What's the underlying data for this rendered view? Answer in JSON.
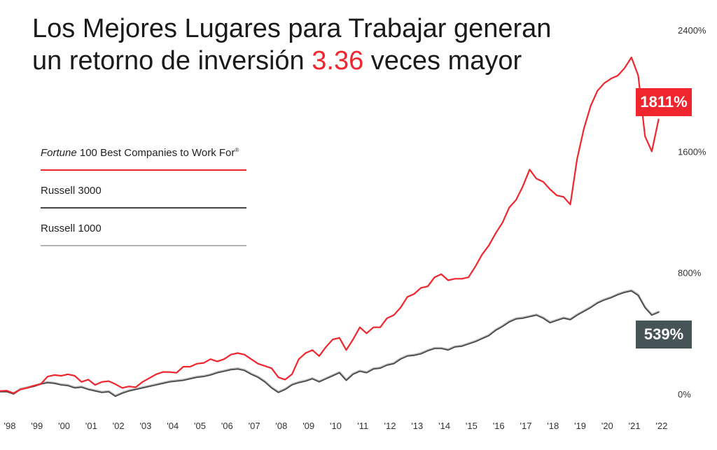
{
  "title": {
    "line1": "Los Mejores Lugares para Trabajar generan",
    "line2_prefix": "un retorno de inversión ",
    "line2_highlight": "3.36",
    "line2_suffix": " veces mayor"
  },
  "legend": {
    "items": [
      {
        "label_italic": "Fortune",
        "label_rest": " 100 Best Companies to Work For",
        "label_mark": "®",
        "color": "#f0262f"
      },
      {
        "label": "Russell 3000",
        "color": "#444444"
      },
      {
        "label": "Russell 1000",
        "color": "#b3b3b3"
      }
    ]
  },
  "badges": {
    "best": "1811%",
    "russell": "539%"
  },
  "colors": {
    "accent": "#f0262f",
    "r3000": "#444444",
    "r1000": "#b3b3b3",
    "badge_dark": "#465357"
  },
  "chart_data": {
    "type": "line",
    "title": "Los Mejores Lugares para Trabajar generan un retorno de inversión 3.36 veces mayor",
    "x_tick_labels": [
      "'98",
      "'99",
      "'00",
      "'01",
      "'02",
      "'03",
      "'04",
      "'05",
      "'06",
      "'07",
      "'08",
      "'09",
      "'10",
      "'11",
      "'12",
      "'13",
      "'14",
      "'15",
      "'16",
      "'17",
      "'18",
      "'19",
      "'20",
      "'21",
      "'22"
    ],
    "y_tick_labels": [
      "0%",
      "800%",
      "1600%",
      "2400%"
    ],
    "ylim": [
      0,
      2400
    ],
    "xlim": [
      1998,
      2022.75
    ],
    "y_axis_side": "right",
    "grid": false,
    "series": [
      {
        "name": "Fortune 100 Best Companies to Work For®",
        "color": "#f0262f",
        "points": [
          [
            1998.0,
            20
          ],
          [
            1998.25,
            22
          ],
          [
            1998.5,
            5
          ],
          [
            1998.75,
            30
          ],
          [
            1999.0,
            40
          ],
          [
            1999.25,
            55
          ],
          [
            1999.5,
            65
          ],
          [
            1999.75,
            115
          ],
          [
            2000.0,
            125
          ],
          [
            2000.25,
            120
          ],
          [
            2000.5,
            130
          ],
          [
            2000.75,
            120
          ],
          [
            2001.0,
            80
          ],
          [
            2001.25,
            95
          ],
          [
            2001.5,
            60
          ],
          [
            2001.75,
            80
          ],
          [
            2002.0,
            85
          ],
          [
            2002.25,
            65
          ],
          [
            2002.5,
            40
          ],
          [
            2002.75,
            50
          ],
          [
            2003.0,
            45
          ],
          [
            2003.25,
            80
          ],
          [
            2003.5,
            105
          ],
          [
            2003.75,
            130
          ],
          [
            2004.0,
            145
          ],
          [
            2004.25,
            145
          ],
          [
            2004.5,
            140
          ],
          [
            2004.75,
            180
          ],
          [
            2005.0,
            180
          ],
          [
            2005.25,
            200
          ],
          [
            2005.5,
            205
          ],
          [
            2005.75,
            230
          ],
          [
            2006.0,
            215
          ],
          [
            2006.25,
            230
          ],
          [
            2006.5,
            260
          ],
          [
            2006.75,
            270
          ],
          [
            2007.0,
            260
          ],
          [
            2007.25,
            230
          ],
          [
            2007.5,
            200
          ],
          [
            2007.75,
            185
          ],
          [
            2008.0,
            170
          ],
          [
            2008.25,
            110
          ],
          [
            2008.5,
            95
          ],
          [
            2008.75,
            130
          ],
          [
            2009.0,
            230
          ],
          [
            2009.25,
            270
          ],
          [
            2009.5,
            290
          ],
          [
            2009.75,
            250
          ],
          [
            2010.0,
            310
          ],
          [
            2010.25,
            360
          ],
          [
            2010.5,
            370
          ],
          [
            2010.75,
            290
          ],
          [
            2011.0,
            360
          ],
          [
            2011.25,
            440
          ],
          [
            2011.5,
            400
          ],
          [
            2011.75,
            440
          ],
          [
            2012.0,
            440
          ],
          [
            2012.25,
            500
          ],
          [
            2012.5,
            520
          ],
          [
            2012.75,
            570
          ],
          [
            2013.0,
            640
          ],
          [
            2013.25,
            660
          ],
          [
            2013.5,
            700
          ],
          [
            2013.75,
            710
          ],
          [
            2014.0,
            770
          ],
          [
            2014.25,
            790
          ],
          [
            2014.5,
            750
          ],
          [
            2014.75,
            760
          ],
          [
            2015.0,
            760
          ],
          [
            2015.25,
            770
          ],
          [
            2015.5,
            840
          ],
          [
            2015.75,
            920
          ],
          [
            2016.0,
            980
          ],
          [
            2016.25,
            1060
          ],
          [
            2016.5,
            1130
          ],
          [
            2016.75,
            1230
          ],
          [
            2017.0,
            1280
          ],
          [
            2017.25,
            1370
          ],
          [
            2017.5,
            1480
          ],
          [
            2017.75,
            1420
          ],
          [
            2018.0,
            1400
          ],
          [
            2018.25,
            1350
          ],
          [
            2018.5,
            1310
          ],
          [
            2018.75,
            1300
          ],
          [
            2019.0,
            1250
          ],
          [
            2019.25,
            1550
          ],
          [
            2019.5,
            1750
          ],
          [
            2019.75,
            1900
          ],
          [
            2020.0,
            2000
          ],
          [
            2020.25,
            2050
          ],
          [
            2020.5,
            2080
          ],
          [
            2020.75,
            2100
          ],
          [
            2021.0,
            2150
          ],
          [
            2021.25,
            2220
          ],
          [
            2021.5,
            2100
          ],
          [
            2021.75,
            1700
          ],
          [
            2022.0,
            1600
          ],
          [
            2022.25,
            1811
          ]
        ]
      },
      {
        "name": "Russell 3000",
        "color": "#444444",
        "points": [
          [
            1998.0,
            15
          ],
          [
            1998.25,
            15
          ],
          [
            1998.5,
            0
          ],
          [
            1998.75,
            30
          ],
          [
            1999.0,
            40
          ],
          [
            1999.25,
            50
          ],
          [
            1999.5,
            65
          ],
          [
            1999.75,
            75
          ],
          [
            2000.0,
            70
          ],
          [
            2000.25,
            60
          ],
          [
            2000.5,
            55
          ],
          [
            2000.75,
            40
          ],
          [
            2001.0,
            45
          ],
          [
            2001.25,
            30
          ],
          [
            2001.5,
            20
          ],
          [
            2001.75,
            10
          ],
          [
            2002.0,
            15
          ],
          [
            2002.25,
            -15
          ],
          [
            2002.5,
            5
          ],
          [
            2002.75,
            20
          ],
          [
            2003.0,
            30
          ],
          [
            2003.25,
            40
          ],
          [
            2003.5,
            50
          ],
          [
            2003.75,
            60
          ],
          [
            2004.0,
            70
          ],
          [
            2004.25,
            80
          ],
          [
            2004.5,
            85
          ],
          [
            2004.75,
            90
          ],
          [
            2005.0,
            100
          ],
          [
            2005.25,
            110
          ],
          [
            2005.5,
            115
          ],
          [
            2005.75,
            125
          ],
          [
            2006.0,
            140
          ],
          [
            2006.25,
            150
          ],
          [
            2006.5,
            160
          ],
          [
            2006.75,
            165
          ],
          [
            2007.0,
            155
          ],
          [
            2007.25,
            130
          ],
          [
            2007.5,
            110
          ],
          [
            2007.75,
            80
          ],
          [
            2008.0,
            40
          ],
          [
            2008.25,
            10
          ],
          [
            2008.5,
            30
          ],
          [
            2008.75,
            60
          ],
          [
            2009.0,
            75
          ],
          [
            2009.25,
            85
          ],
          [
            2009.5,
            100
          ],
          [
            2009.75,
            80
          ],
          [
            2010.0,
            100
          ],
          [
            2010.25,
            120
          ],
          [
            2010.5,
            140
          ],
          [
            2010.75,
            90
          ],
          [
            2011.0,
            130
          ],
          [
            2011.25,
            150
          ],
          [
            2011.5,
            140
          ],
          [
            2011.75,
            165
          ],
          [
            2012.0,
            170
          ],
          [
            2012.25,
            190
          ],
          [
            2012.5,
            200
          ],
          [
            2012.75,
            230
          ],
          [
            2013.0,
            250
          ],
          [
            2013.25,
            255
          ],
          [
            2013.5,
            265
          ],
          [
            2013.75,
            285
          ],
          [
            2014.0,
            300
          ],
          [
            2014.25,
            300
          ],
          [
            2014.5,
            290
          ],
          [
            2014.75,
            310
          ],
          [
            2015.0,
            315
          ],
          [
            2015.25,
            330
          ],
          [
            2015.5,
            345
          ],
          [
            2015.75,
            365
          ],
          [
            2016.0,
            385
          ],
          [
            2016.25,
            420
          ],
          [
            2016.5,
            445
          ],
          [
            2016.75,
            475
          ],
          [
            2017.0,
            495
          ],
          [
            2017.25,
            500
          ],
          [
            2017.5,
            510
          ],
          [
            2017.75,
            520
          ],
          [
            2018.0,
            500
          ],
          [
            2018.25,
            470
          ],
          [
            2018.5,
            485
          ],
          [
            2018.75,
            500
          ],
          [
            2019.0,
            490
          ],
          [
            2019.25,
            520
          ],
          [
            2019.5,
            545
          ],
          [
            2019.75,
            570
          ],
          [
            2020.0,
            600
          ],
          [
            2020.25,
            620
          ],
          [
            2020.5,
            635
          ],
          [
            2020.75,
            655
          ],
          [
            2021.0,
            670
          ],
          [
            2021.25,
            680
          ],
          [
            2021.5,
            650
          ],
          [
            2021.75,
            570
          ],
          [
            2022.0,
            520
          ],
          [
            2022.25,
            539
          ]
        ]
      },
      {
        "name": "Russell 1000",
        "color": "#b3b3b3",
        "points": [
          [
            1998.0,
            18
          ],
          [
            1998.25,
            18
          ],
          [
            1998.5,
            3
          ],
          [
            1998.75,
            33
          ],
          [
            1999.0,
            43
          ],
          [
            1999.25,
            53
          ],
          [
            1999.5,
            68
          ],
          [
            1999.75,
            78
          ],
          [
            2000.0,
            73
          ],
          [
            2000.25,
            63
          ],
          [
            2000.5,
            58
          ],
          [
            2000.75,
            43
          ],
          [
            2001.0,
            48
          ],
          [
            2001.25,
            33
          ],
          [
            2001.5,
            23
          ],
          [
            2001.75,
            13
          ],
          [
            2002.0,
            18
          ],
          [
            2002.25,
            -12
          ],
          [
            2002.5,
            8
          ],
          [
            2002.75,
            23
          ],
          [
            2003.0,
            33
          ],
          [
            2003.25,
            43
          ],
          [
            2003.5,
            53
          ],
          [
            2003.75,
            63
          ],
          [
            2004.0,
            73
          ],
          [
            2004.25,
            83
          ],
          [
            2004.5,
            88
          ],
          [
            2004.75,
            93
          ],
          [
            2005.0,
            103
          ],
          [
            2005.25,
            113
          ],
          [
            2005.5,
            118
          ],
          [
            2005.75,
            128
          ],
          [
            2006.0,
            143
          ],
          [
            2006.25,
            153
          ],
          [
            2006.5,
            163
          ],
          [
            2006.75,
            168
          ],
          [
            2007.0,
            158
          ],
          [
            2007.25,
            133
          ],
          [
            2007.5,
            113
          ],
          [
            2007.75,
            83
          ],
          [
            2008.0,
            43
          ],
          [
            2008.25,
            13
          ],
          [
            2008.5,
            33
          ],
          [
            2008.75,
            63
          ],
          [
            2009.0,
            78
          ],
          [
            2009.25,
            88
          ],
          [
            2009.5,
            103
          ],
          [
            2009.75,
            83
          ],
          [
            2010.0,
            103
          ],
          [
            2010.25,
            123
          ],
          [
            2010.5,
            143
          ],
          [
            2010.75,
            93
          ],
          [
            2011.0,
            133
          ],
          [
            2011.25,
            153
          ],
          [
            2011.5,
            143
          ],
          [
            2011.75,
            168
          ],
          [
            2012.0,
            173
          ],
          [
            2012.25,
            193
          ],
          [
            2012.5,
            203
          ],
          [
            2012.75,
            233
          ],
          [
            2013.0,
            253
          ],
          [
            2013.25,
            258
          ],
          [
            2013.5,
            268
          ],
          [
            2013.75,
            288
          ],
          [
            2014.0,
            303
          ],
          [
            2014.25,
            303
          ],
          [
            2014.5,
            293
          ],
          [
            2014.75,
            313
          ],
          [
            2015.0,
            318
          ],
          [
            2015.25,
            333
          ],
          [
            2015.5,
            348
          ],
          [
            2015.75,
            368
          ],
          [
            2016.0,
            388
          ],
          [
            2016.25,
            423
          ],
          [
            2016.5,
            448
          ],
          [
            2016.75,
            478
          ],
          [
            2017.0,
            498
          ],
          [
            2017.25,
            503
          ],
          [
            2017.5,
            513
          ],
          [
            2017.75,
            523
          ],
          [
            2018.0,
            503
          ],
          [
            2018.25,
            473
          ],
          [
            2018.5,
            488
          ],
          [
            2018.75,
            503
          ],
          [
            2019.0,
            493
          ],
          [
            2019.25,
            523
          ],
          [
            2019.5,
            548
          ],
          [
            2019.75,
            573
          ],
          [
            2020.0,
            603
          ],
          [
            2020.25,
            623
          ],
          [
            2020.5,
            638
          ],
          [
            2020.75,
            658
          ],
          [
            2021.0,
            673
          ],
          [
            2021.25,
            683
          ],
          [
            2021.5,
            653
          ],
          [
            2021.75,
            573
          ],
          [
            2022.0,
            523
          ],
          [
            2022.25,
            542
          ]
        ]
      }
    ]
  }
}
